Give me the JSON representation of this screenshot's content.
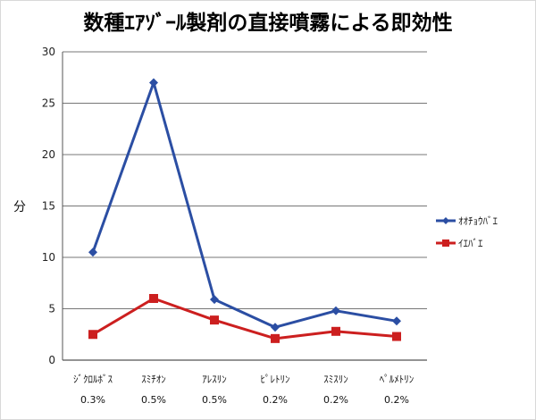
{
  "chart_data": {
    "type": "line",
    "title": "数種ｴｱｿﾞｰﾙ製剤の直接噴霧による即効性",
    "ylabel": "分",
    "xlabel": "",
    "ylim": [
      0,
      30
    ],
    "yticks": [
      0,
      5,
      10,
      15,
      20,
      25,
      30
    ],
    "grid": true,
    "legend_position": "right",
    "categories": [
      {
        "name": "ｼﾞｸﾛﾙﾎﾞｽ",
        "dose": "0.3%"
      },
      {
        "name": "ｽﾐﾁｵﾝ",
        "dose": "0.5%"
      },
      {
        "name": "ｱﾚｽﾘﾝ",
        "dose": "0.5%"
      },
      {
        "name": "ﾋﾟﾚﾄﾘﾝ",
        "dose": "0.2%"
      },
      {
        "name": "ｽﾐｽﾘﾝ",
        "dose": "0.2%"
      },
      {
        "name": "ﾍﾟﾙﾒﾄﾘﾝ",
        "dose": "0.2%"
      }
    ],
    "series": [
      {
        "name": "ｵｵﾁｮｳﾊﾞｴ",
        "color": "#2b4ea3",
        "marker": "diamond",
        "values": [
          10.5,
          27,
          5.9,
          3.2,
          4.8,
          3.8
        ]
      },
      {
        "name": "ｲｴﾊﾞｴ",
        "color": "#cc1f1f",
        "marker": "square",
        "values": [
          2.5,
          6.0,
          3.9,
          2.1,
          2.8,
          2.3
        ]
      }
    ]
  }
}
